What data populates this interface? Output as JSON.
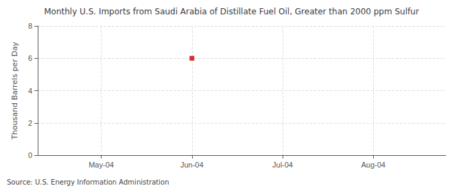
{
  "chart_data": {
    "type": "scatter",
    "title": "Monthly U.S. Imports from Saudi Arabia of Distillate Fuel Oil, Greater than 2000 ppm Sulfur",
    "ylabel": "Thousand Barrels per Day",
    "annotations": [
      "Source: U.S. Energy Information Administration"
    ],
    "x": [
      2
    ],
    "values": [
      6.0
    ],
    "color": "#cc0000",
    "marker": "square",
    "xlim": [
      0.3,
      4.8
    ],
    "xticks": [
      {
        "value": 1,
        "label": "May-04"
      },
      {
        "value": 2,
        "label": "Jun-04"
      },
      {
        "value": 3,
        "label": "Jul-04"
      },
      {
        "value": 4,
        "label": "Aug-04"
      }
    ],
    "ylim": [
      0,
      8
    ],
    "yticks": [
      0,
      2,
      4,
      6,
      8
    ],
    "grid": true
  }
}
